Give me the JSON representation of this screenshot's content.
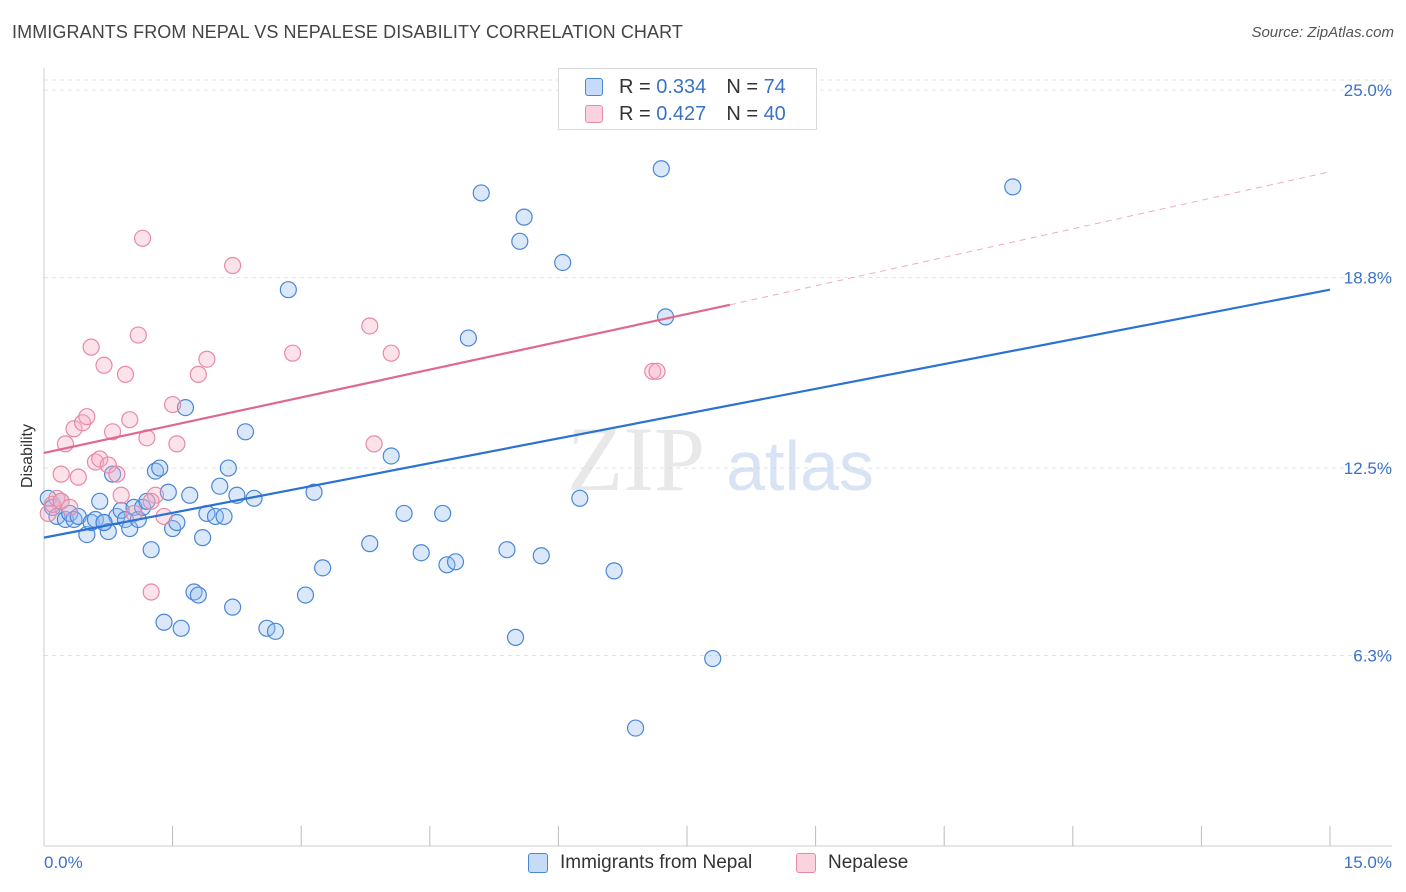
{
  "header": {
    "title": "IMMIGRANTS FROM NEPAL VS NEPALESE DISABILITY CORRELATION CHART",
    "source": "Source: ZipAtlas.com"
  },
  "legend": {
    "r_label": "R =",
    "n_label": "N =",
    "series1": {
      "r": "0.334",
      "n": "74"
    },
    "series2": {
      "r": "0.427",
      "n": "40"
    }
  },
  "watermark": {
    "zip": "ZIP",
    "atlas": "atlas"
  },
  "colors": {
    "blue": "#4a86d8",
    "blue_fill": "rgba(150,190,240,0.35)",
    "blue_line": "#2c72d2",
    "pink": "#e889a8",
    "pink_fill": "rgba(245,175,195,0.35)",
    "pink_line": "#e06890",
    "axis_text": "#3a72c8",
    "grid": "#e2e2e2"
  },
  "chart_data": {
    "type": "scatter",
    "title": "IMMIGRANTS FROM NEPAL VS NEPALESE DISABILITY CORRELATION CHART",
    "xlabel": "",
    "ylabel": "Disability",
    "xlim": [
      0,
      15
    ],
    "ylim": [
      0,
      25.6
    ],
    "x_tick_labels": {
      "left": "0.0%",
      "right": "15.0%"
    },
    "y_ticks": [
      {
        "value": 6.3,
        "label": "6.3%"
      },
      {
        "value": 12.5,
        "label": "12.5%"
      },
      {
        "value": 18.8,
        "label": "18.8%"
      },
      {
        "value": 25.0,
        "label": "25.0%"
      }
    ],
    "x_minor_ticks": [
      1.5,
      3.0,
      4.5,
      6.0,
      7.5,
      9.0,
      10.5,
      12.0,
      13.5,
      15.0
    ],
    "series": [
      {
        "name": "Immigrants from Nepal",
        "color": "blue",
        "trend": {
          "x0": 0,
          "y0": 10.2,
          "x1": 15,
          "y1": 18.4,
          "dashed_extension": false
        },
        "points": [
          [
            0.05,
            11.5
          ],
          [
            0.1,
            11.2
          ],
          [
            0.15,
            10.9
          ],
          [
            0.2,
            11.4
          ],
          [
            0.25,
            10.8
          ],
          [
            0.3,
            11.0
          ],
          [
            0.35,
            10.8
          ],
          [
            0.4,
            10.9
          ],
          [
            0.5,
            10.3
          ],
          [
            0.55,
            10.7
          ],
          [
            0.6,
            10.8
          ],
          [
            0.65,
            11.4
          ],
          [
            0.7,
            10.7
          ],
          [
            0.75,
            10.4
          ],
          [
            0.8,
            12.3
          ],
          [
            0.85,
            10.9
          ],
          [
            0.9,
            11.1
          ],
          [
            0.95,
            10.8
          ],
          [
            1.0,
            10.5
          ],
          [
            1.05,
            11.2
          ],
          [
            1.1,
            10.8
          ],
          [
            1.15,
            11.2
          ],
          [
            1.2,
            11.4
          ],
          [
            1.25,
            9.8
          ],
          [
            1.3,
            12.4
          ],
          [
            1.35,
            12.5
          ],
          [
            1.4,
            7.4
          ],
          [
            1.45,
            11.7
          ],
          [
            1.5,
            10.5
          ],
          [
            1.55,
            10.7
          ],
          [
            1.6,
            7.2
          ],
          [
            1.65,
            14.5
          ],
          [
            1.7,
            11.6
          ],
          [
            1.75,
            8.4
          ],
          [
            1.8,
            8.3
          ],
          [
            1.85,
            10.2
          ],
          [
            1.9,
            11.0
          ],
          [
            2.0,
            10.9
          ],
          [
            2.05,
            11.9
          ],
          [
            2.1,
            10.9
          ],
          [
            2.15,
            12.5
          ],
          [
            2.2,
            7.9
          ],
          [
            2.25,
            11.6
          ],
          [
            2.35,
            13.7
          ],
          [
            2.45,
            11.5
          ],
          [
            2.6,
            7.2
          ],
          [
            2.7,
            7.1
          ],
          [
            2.85,
            18.4
          ],
          [
            3.05,
            8.3
          ],
          [
            3.15,
            11.7
          ],
          [
            3.25,
            9.2
          ],
          [
            3.8,
            10.0
          ],
          [
            4.05,
            12.9
          ],
          [
            4.2,
            11.0
          ],
          [
            4.4,
            9.7
          ],
          [
            4.65,
            11.0
          ],
          [
            4.7,
            9.3
          ],
          [
            4.8,
            9.4
          ],
          [
            4.95,
            16.8
          ],
          [
            5.1,
            21.6
          ],
          [
            5.4,
            9.8
          ],
          [
            5.5,
            6.9
          ],
          [
            5.55,
            20.0
          ],
          [
            5.6,
            20.8
          ],
          [
            5.8,
            9.6
          ],
          [
            6.05,
            19.3
          ],
          [
            6.25,
            11.5
          ],
          [
            6.65,
            9.1
          ],
          [
            6.9,
            3.9
          ],
          [
            7.2,
            22.4
          ],
          [
            7.25,
            17.5
          ],
          [
            7.8,
            6.2
          ],
          [
            11.3,
            21.8
          ],
          [
            0.7,
            10.7
          ]
        ]
      },
      {
        "name": "Nepalese",
        "color": "pink",
        "trend": {
          "x0": 0,
          "y0": 13.0,
          "x1": 8.0,
          "y1": 17.9,
          "dashed_x1": 15,
          "dashed_y1": 22.3
        },
        "points": [
          [
            0.05,
            11.0
          ],
          [
            0.1,
            11.3
          ],
          [
            0.15,
            11.5
          ],
          [
            0.2,
            11.4
          ],
          [
            0.25,
            13.3
          ],
          [
            0.3,
            11.2
          ],
          [
            0.35,
            13.8
          ],
          [
            0.4,
            12.2
          ],
          [
            0.45,
            14.0
          ],
          [
            0.5,
            14.2
          ],
          [
            0.55,
            16.5
          ],
          [
            0.6,
            12.7
          ],
          [
            0.65,
            12.8
          ],
          [
            0.7,
            15.9
          ],
          [
            0.75,
            12.6
          ],
          [
            0.8,
            13.7
          ],
          [
            0.85,
            12.3
          ],
          [
            0.9,
            11.6
          ],
          [
            0.95,
            15.6
          ],
          [
            1.0,
            14.1
          ],
          [
            1.05,
            11.0
          ],
          [
            1.1,
            16.9
          ],
          [
            1.15,
            20.1
          ],
          [
            1.2,
            13.5
          ],
          [
            1.25,
            8.4
          ],
          [
            1.3,
            11.6
          ],
          [
            1.4,
            10.9
          ],
          [
            1.5,
            14.6
          ],
          [
            1.55,
            13.3
          ],
          [
            1.8,
            15.6
          ],
          [
            1.9,
            16.1
          ],
          [
            2.2,
            19.2
          ],
          [
            2.9,
            16.3
          ],
          [
            3.8,
            17.2
          ],
          [
            3.85,
            13.3
          ],
          [
            4.05,
            16.3
          ],
          [
            7.1,
            15.7
          ],
          [
            7.15,
            15.7
          ],
          [
            0.2,
            12.3
          ],
          [
            1.25,
            11.4
          ]
        ]
      }
    ]
  },
  "bottom_legend": {
    "item1": "Immigrants from Nepal",
    "item2": "Nepalese"
  }
}
